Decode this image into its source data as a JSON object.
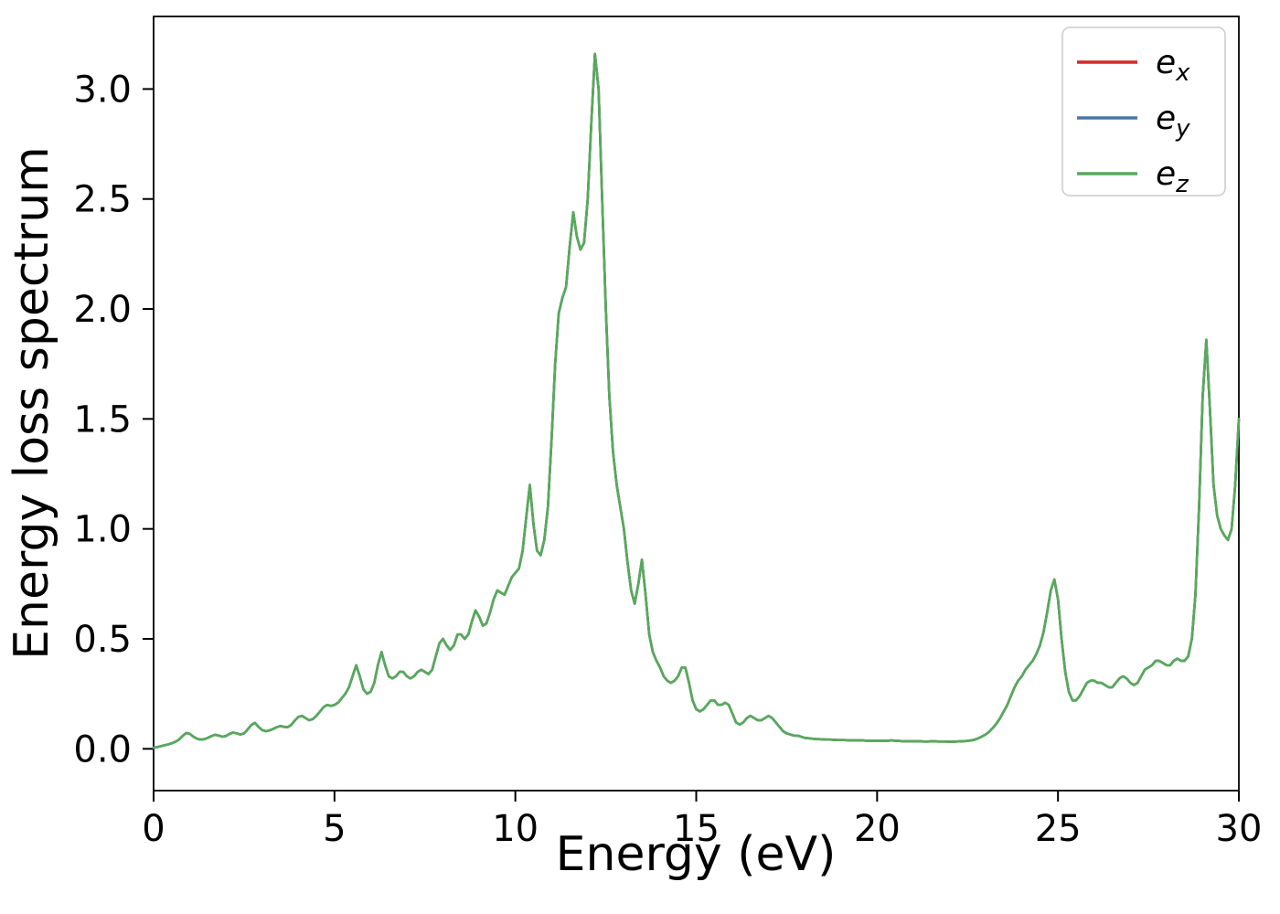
{
  "figure": {
    "background": "#ffffff",
    "axes_color": "#000000"
  },
  "chart_data": {
    "type": "line",
    "title": "",
    "xlabel": "Energy (eV)",
    "ylabel": "Energy loss spectrum",
    "xlim": [
      0,
      30
    ],
    "ylim": [
      -0.19,
      3.33
    ],
    "xticks": [
      0,
      5,
      10,
      15,
      20,
      25,
      30
    ],
    "yticks": [
      0.0,
      0.5,
      1.0,
      1.5,
      2.0,
      2.5,
      3.0
    ],
    "grid": false,
    "legend_position": "upper right",
    "series": [
      {
        "name": "e_x",
        "label_main": "e",
        "label_sub": "x",
        "color": "#d62728"
      },
      {
        "name": "e_y",
        "label_main": "e",
        "label_sub": "y",
        "color": "#4878a8"
      },
      {
        "name": "e_z",
        "label_main": "e",
        "label_sub": "z",
        "color": "#55ab5a"
      }
    ],
    "series_note": "All three series overlap exactly; only e_z (green, drawn last) is visible.",
    "x_start": 0,
    "x_step": 0.1,
    "values": [
      0.005,
      0.008,
      0.012,
      0.016,
      0.02,
      0.025,
      0.032,
      0.042,
      0.058,
      0.072,
      0.068,
      0.055,
      0.046,
      0.042,
      0.044,
      0.05,
      0.058,
      0.064,
      0.06,
      0.055,
      0.058,
      0.068,
      0.074,
      0.07,
      0.065,
      0.07,
      0.088,
      0.108,
      0.118,
      0.1,
      0.085,
      0.08,
      0.084,
      0.09,
      0.098,
      0.104,
      0.1,
      0.098,
      0.108,
      0.128,
      0.145,
      0.15,
      0.14,
      0.13,
      0.135,
      0.15,
      0.17,
      0.19,
      0.2,
      0.195,
      0.2,
      0.21,
      0.23,
      0.25,
      0.28,
      0.33,
      0.38,
      0.33,
      0.27,
      0.25,
      0.26,
      0.3,
      0.38,
      0.44,
      0.38,
      0.33,
      0.32,
      0.33,
      0.35,
      0.35,
      0.33,
      0.32,
      0.33,
      0.35,
      0.36,
      0.35,
      0.34,
      0.36,
      0.42,
      0.48,
      0.5,
      0.47,
      0.45,
      0.47,
      0.52,
      0.52,
      0.5,
      0.52,
      0.58,
      0.63,
      0.6,
      0.56,
      0.57,
      0.62,
      0.68,
      0.72,
      0.71,
      0.7,
      0.74,
      0.78,
      0.8,
      0.82,
      0.9,
      1.05,
      1.2,
      1.02,
      0.9,
      0.88,
      0.95,
      1.1,
      1.4,
      1.75,
      1.98,
      2.05,
      2.1,
      2.28,
      2.44,
      2.33,
      2.27,
      2.3,
      2.5,
      2.85,
      3.16,
      3.0,
      2.5,
      2.0,
      1.6,
      1.35,
      1.2,
      1.1,
      1.0,
      0.85,
      0.72,
      0.66,
      0.75,
      0.86,
      0.7,
      0.52,
      0.44,
      0.4,
      0.37,
      0.33,
      0.31,
      0.3,
      0.31,
      0.33,
      0.37,
      0.37,
      0.3,
      0.22,
      0.18,
      0.17,
      0.18,
      0.2,
      0.22,
      0.22,
      0.2,
      0.2,
      0.21,
      0.2,
      0.16,
      0.12,
      0.11,
      0.12,
      0.14,
      0.15,
      0.14,
      0.13,
      0.13,
      0.14,
      0.15,
      0.14,
      0.12,
      0.1,
      0.08,
      0.07,
      0.065,
      0.06,
      0.06,
      0.055,
      0.05,
      0.048,
      0.046,
      0.045,
      0.044,
      0.043,
      0.042,
      0.042,
      0.041,
      0.04,
      0.04,
      0.04,
      0.039,
      0.039,
      0.038,
      0.038,
      0.038,
      0.037,
      0.037,
      0.037,
      0.037,
      0.036,
      0.036,
      0.037,
      0.038,
      0.037,
      0.036,
      0.035,
      0.035,
      0.035,
      0.034,
      0.034,
      0.034,
      0.033,
      0.033,
      0.034,
      0.034,
      0.033,
      0.033,
      0.033,
      0.032,
      0.032,
      0.033,
      0.034,
      0.035,
      0.036,
      0.038,
      0.042,
      0.048,
      0.056,
      0.065,
      0.078,
      0.095,
      0.115,
      0.14,
      0.17,
      0.2,
      0.24,
      0.28,
      0.31,
      0.33,
      0.36,
      0.38,
      0.4,
      0.43,
      0.47,
      0.53,
      0.62,
      0.72,
      0.77,
      0.68,
      0.5,
      0.35,
      0.26,
      0.22,
      0.22,
      0.24,
      0.27,
      0.3,
      0.31,
      0.31,
      0.3,
      0.3,
      0.29,
      0.28,
      0.28,
      0.3,
      0.32,
      0.33,
      0.32,
      0.3,
      0.29,
      0.3,
      0.33,
      0.36,
      0.37,
      0.38,
      0.4,
      0.4,
      0.39,
      0.38,
      0.38,
      0.4,
      0.41,
      0.4,
      0.4,
      0.42,
      0.5,
      0.7,
      1.1,
      1.6,
      1.86,
      1.55,
      1.2,
      1.06,
      1.0,
      0.97,
      0.95,
      1.0,
      1.2,
      1.5
    ]
  }
}
